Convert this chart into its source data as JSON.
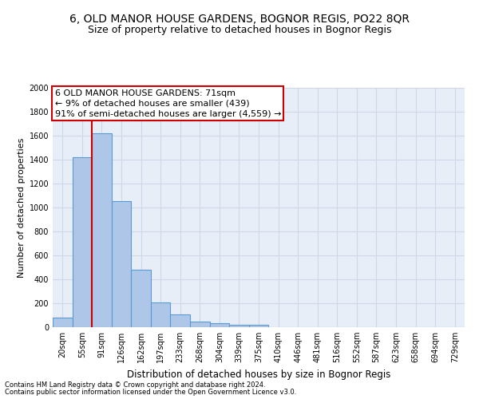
{
  "title": "6, OLD MANOR HOUSE GARDENS, BOGNOR REGIS, PO22 8QR",
  "subtitle": "Size of property relative to detached houses in Bognor Regis",
  "xlabel": "Distribution of detached houses by size in Bognor Regis",
  "ylabel": "Number of detached properties",
  "bar_labels": [
    "20sqm",
    "55sqm",
    "91sqm",
    "126sqm",
    "162sqm",
    "197sqm",
    "233sqm",
    "268sqm",
    "304sqm",
    "339sqm",
    "375sqm",
    "410sqm",
    "446sqm",
    "481sqm",
    "516sqm",
    "552sqm",
    "587sqm",
    "623sqm",
    "658sqm",
    "694sqm",
    "729sqm"
  ],
  "bar_values": [
    80,
    1420,
    1620,
    1055,
    480,
    205,
    105,
    48,
    35,
    22,
    18,
    0,
    0,
    0,
    0,
    0,
    0,
    0,
    0,
    0,
    0
  ],
  "bar_color": "#aec6e8",
  "bar_edge_color": "#5b9bd5",
  "vline_color": "#cc0000",
  "annotation_text": "6 OLD MANOR HOUSE GARDENS: 71sqm\n← 9% of detached houses are smaller (439)\n91% of semi-detached houses are larger (4,559) →",
  "annotation_box_color": "#ffffff",
  "annotation_box_edge_color": "#cc0000",
  "ylim": [
    0,
    2000
  ],
  "yticks": [
    0,
    200,
    400,
    600,
    800,
    1000,
    1200,
    1400,
    1600,
    1800,
    2000
  ],
  "grid_color": "#d0d8e8",
  "background_color": "#e8eef8",
  "footer_line1": "Contains HM Land Registry data © Crown copyright and database right 2024.",
  "footer_line2": "Contains public sector information licensed under the Open Government Licence v3.0.",
  "title_fontsize": 10,
  "subtitle_fontsize": 9,
  "ylabel_fontsize": 8,
  "xlabel_fontsize": 8.5,
  "tick_fontsize": 7,
  "annotation_fontsize": 8,
  "footer_fontsize": 6
}
